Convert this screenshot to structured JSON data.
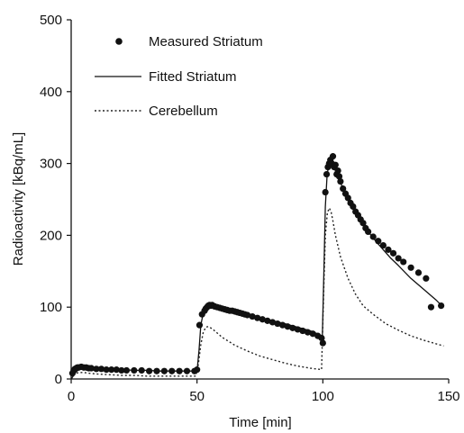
{
  "chart_data": {
    "type": "line",
    "xlabel": "Time [min]",
    "ylabel": "Radioactivity [kBq/mL]",
    "xlim": [
      0,
      150
    ],
    "ylim": [
      0,
      500
    ],
    "xticks": [
      "0",
      "50",
      "100",
      "150"
    ],
    "yticks": [
      "0",
      "100",
      "200",
      "300",
      "400",
      "500"
    ],
    "grid": false,
    "legend_position": "top-left",
    "colors": {
      "measured": "#111111",
      "fitted": "#111111",
      "cerebellum": "#222222"
    },
    "series": [
      {
        "name": "Measured Striatum",
        "style": "markers",
        "x": [
          0.5,
          1,
          1.5,
          2,
          2.5,
          3,
          4,
          5,
          6,
          7,
          8,
          10,
          12,
          14,
          16,
          18,
          20,
          22,
          25,
          28,
          31,
          34,
          37,
          40,
          43,
          46,
          49,
          50,
          51,
          52,
          53,
          53.5,
          54,
          54.5,
          55,
          55.5,
          56,
          57,
          58,
          59,
          60,
          61,
          62,
          63,
          64,
          65,
          66,
          67,
          68,
          69,
          70,
          72,
          74,
          76,
          78,
          80,
          82,
          84,
          86,
          88,
          90,
          92,
          94,
          96,
          98,
          99.5,
          100,
          101,
          101.5,
          102,
          102.5,
          103,
          103.5,
          104,
          104.5,
          105,
          105.5,
          106,
          106.5,
          107,
          108,
          109,
          110,
          111,
          112,
          113,
          114,
          115,
          116,
          117,
          118,
          120,
          122,
          124,
          126,
          128,
          130,
          132,
          135,
          138,
          141,
          143,
          147
        ],
        "y": [
          8,
          12,
          14,
          15,
          16,
          16,
          17,
          16,
          16,
          15,
          15,
          14,
          14,
          13,
          13,
          13,
          12,
          12,
          12,
          12,
          11,
          11,
          11,
          11,
          11,
          11,
          11,
          13,
          75,
          90,
          95,
          98,
          100,
          102,
          103,
          102,
          103,
          101,
          100,
          99,
          98,
          97,
          96,
          95,
          95,
          94,
          93,
          92,
          91,
          90,
          89,
          87,
          85,
          83,
          81,
          79,
          77,
          75,
          73,
          71,
          69,
          67,
          65,
          63,
          60,
          57,
          50,
          260,
          285,
          295,
          300,
          305,
          300,
          310,
          295,
          298,
          285,
          290,
          282,
          275,
          265,
          258,
          252,
          245,
          240,
          233,
          228,
          222,
          217,
          210,
          205,
          198,
          192,
          186,
          180,
          175,
          168,
          163,
          155,
          148,
          140,
          100,
          102
        ]
      },
      {
        "name": "Fitted Striatum",
        "style": "solid",
        "x": [
          0,
          1,
          2,
          3,
          4,
          5,
          7,
          10,
          15,
          20,
          25,
          30,
          35,
          40,
          45,
          50,
          50.8,
          51.5,
          52.5,
          53.5,
          54.5,
          55.5,
          57,
          60,
          65,
          70,
          75,
          80,
          85,
          90,
          95,
          99.8,
          100.4,
          101,
          101.7,
          102.5,
          103.2,
          104,
          105,
          106,
          108,
          110,
          112,
          115,
          118,
          121,
          124,
          127,
          130,
          135,
          140,
          145,
          147
        ],
        "y": [
          0,
          5,
          10,
          13,
          15,
          16,
          16,
          15,
          14,
          13,
          12,
          12,
          11,
          11,
          11,
          11,
          40,
          75,
          92,
          99,
          103,
          104,
          103,
          101,
          96,
          91,
          86,
          81,
          77,
          72,
          67,
          60,
          150,
          240,
          285,
          300,
          305,
          300,
          292,
          282,
          265,
          250,
          237,
          220,
          205,
          192,
          180,
          168,
          158,
          140,
          125,
          110,
          103
        ]
      },
      {
        "name": "Cerebellum",
        "style": "dotted",
        "x": [
          0,
          1,
          2,
          3,
          5,
          7,
          10,
          15,
          20,
          25,
          30,
          35,
          40,
          45,
          49.5,
          50.5,
          51.5,
          52.5,
          53.5,
          54.5,
          56,
          58,
          60,
          65,
          70,
          75,
          80,
          85,
          90,
          95,
          99.5,
          100.3,
          101,
          101.8,
          102.6,
          103.3,
          104,
          105,
          107,
          110,
          113,
          116,
          120,
          125,
          130,
          135,
          140,
          145,
          148
        ],
        "y": [
          0,
          5,
          8,
          9,
          9,
          8,
          7,
          6,
          5,
          5,
          4,
          4,
          4,
          4,
          4,
          20,
          48,
          65,
          72,
          73,
          70,
          64,
          58,
          47,
          39,
          32,
          27,
          22,
          18,
          15,
          13,
          120,
          200,
          232,
          238,
          232,
          220,
          200,
          170,
          140,
          118,
          102,
          90,
          77,
          68,
          60,
          54,
          49,
          46
        ]
      }
    ]
  }
}
